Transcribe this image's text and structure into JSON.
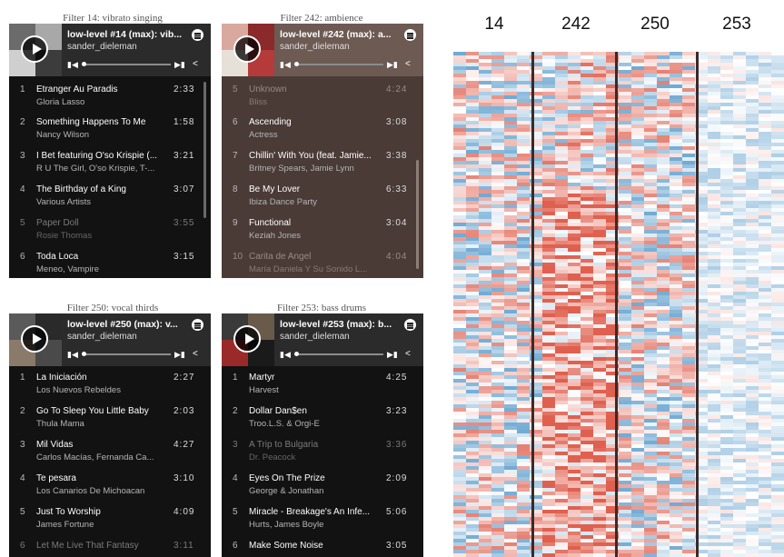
{
  "panels": [
    {
      "caption": "Filter 14: vibrato singing",
      "title": "low-level #14 (max): vib...",
      "user": "sander_dieleman",
      "theme": "dark",
      "tracks": [
        {
          "num": "1",
          "name": "Etranger Au Paradis",
          "artist": "Gloria Lasso",
          "dur": "2:33",
          "dim": false
        },
        {
          "num": "2",
          "name": "Something Happens To Me",
          "artist": "Nancy Wilson",
          "dur": "1:58",
          "dim": false
        },
        {
          "num": "3",
          "name": "I Bet featuring O'so Krispie (...",
          "artist": "R U The Girl, O'so Krispie, T-...",
          "dur": "3:21",
          "dim": false
        },
        {
          "num": "4",
          "name": "The Birthday of a King",
          "artist": "Various Artists",
          "dur": "3:07",
          "dim": false
        },
        {
          "num": "5",
          "name": "Paper Doll",
          "artist": "Rosie Thomas",
          "dur": "3:55",
          "dim": true
        },
        {
          "num": "6",
          "name": "Toda Loca",
          "artist": "Meneo, Vampire",
          "dur": "3:15",
          "dim": false
        }
      ]
    },
    {
      "caption": "Filter 242: ambience",
      "title": "low-level #242 (max): a...",
      "user": "sander_dieleman",
      "theme": "brown",
      "tracks": [
        {
          "num": "5",
          "name": "Unknown",
          "artist": "Bliss",
          "dur": "4:24",
          "dim": false
        },
        {
          "num": "6",
          "name": "Ascending",
          "artist": "Actress",
          "dur": "3:08",
          "dim": false
        },
        {
          "num": "7",
          "name": "Chillin' With You (feat. Jamie...",
          "artist": "Britney Spears, Jamie Lynn",
          "dur": "3:38",
          "dim": false
        },
        {
          "num": "8",
          "name": "Be My Lover",
          "artist": "Ibiza Dance Party",
          "dur": "6:33",
          "dim": false
        },
        {
          "num": "9",
          "name": "Functional",
          "artist": "Keziah Jones",
          "dur": "3:04",
          "dim": false
        },
        {
          "num": "10",
          "name": "Carita de Angel",
          "artist": "María Daniela Y Su Sonido L...",
          "dur": "4:04",
          "dim": true
        }
      ]
    },
    {
      "caption": "Filter 250: vocal thirds",
      "title": "low-level #250 (max): v...",
      "user": "sander_dieleman",
      "theme": "dark",
      "tracks": [
        {
          "num": "1",
          "name": "La Iniciación",
          "artist": "Los Nuevos Rebeldes",
          "dur": "2:27",
          "dim": false
        },
        {
          "num": "2",
          "name": "Go To Sleep You Little Baby",
          "artist": "Thula Mama",
          "dur": "2:03",
          "dim": false
        },
        {
          "num": "3",
          "name": "Mil Vidas",
          "artist": "Carlos Macías, Fernanda Ca...",
          "dur": "4:27",
          "dim": false
        },
        {
          "num": "4",
          "name": "Te pesara",
          "artist": "Los Canarios De Michoacan",
          "dur": "3:10",
          "dim": false
        },
        {
          "num": "5",
          "name": "Just To Worship",
          "artist": "James Fortune",
          "dur": "4:09",
          "dim": false
        },
        {
          "num": "6",
          "name": "Let Me Live That Fantasy",
          "artist": "",
          "dur": "3:11",
          "dim": true
        }
      ]
    },
    {
      "caption": "Filter 253: bass drums",
      "title": "low-level #253 (max): b...",
      "user": "sander_dieleman",
      "theme": "dark",
      "tracks": [
        {
          "num": "1",
          "name": "Martyr",
          "artist": "Harvest",
          "dur": "4:25",
          "dim": false
        },
        {
          "num": "2",
          "name": "Dollar Dan$en",
          "artist": "Troo.L.S. & Orgi-E",
          "dur": "3:23",
          "dim": false
        },
        {
          "num": "3",
          "name": "A Trip to Bulgaria",
          "artist": "Dr. Peacock",
          "dur": "3:36",
          "dim": true
        },
        {
          "num": "4",
          "name": "Eyes On The Prize",
          "artist": "George & Jonathan",
          "dur": "2:09",
          "dim": false
        },
        {
          "num": "5",
          "name": "Miracle - Breakage's An Infe...",
          "artist": "Hurts, James Boyle",
          "dur": "5:06",
          "dim": false
        },
        {
          "num": "6",
          "name": "Make Some Noise",
          "artist": "",
          "dur": "3:05",
          "dim": false
        }
      ]
    }
  ],
  "heatmap": {
    "column_labels": [
      "14",
      "242",
      "250",
      "253"
    ],
    "colors": {
      "red": "#e0604f",
      "blue": "#4d95c8",
      "separator": "#3a2a2a"
    }
  }
}
